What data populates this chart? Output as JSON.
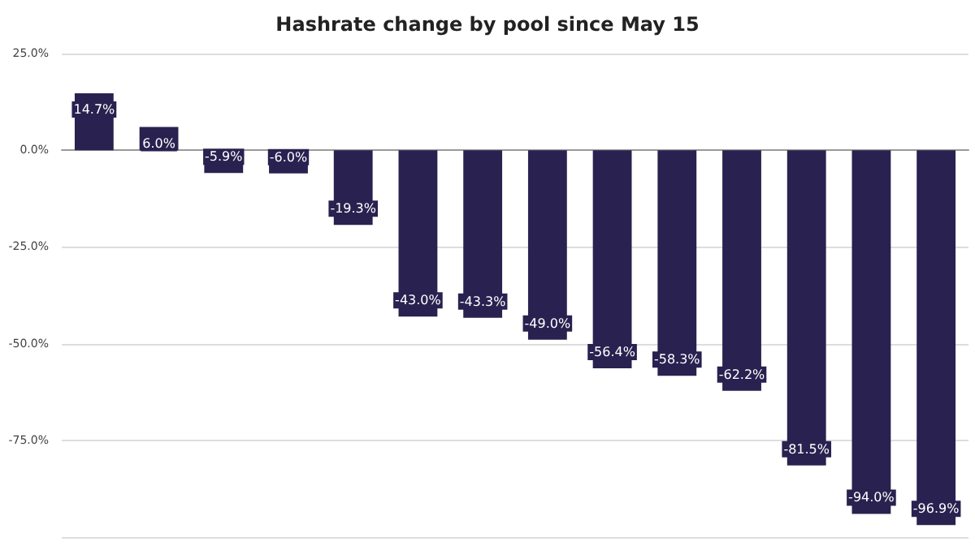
{
  "chart_data": {
    "type": "bar",
    "title": "Hashrate change by pool since May 15",
    "categories": [
      null,
      null,
      null,
      null,
      null,
      null,
      null,
      null,
      null,
      null,
      null,
      null,
      null,
      null
    ],
    "values": [
      14.7,
      6.0,
      -5.9,
      -6.0,
      -19.3,
      -43.0,
      -43.3,
      -49.0,
      -56.4,
      -58.3,
      -62.2,
      -81.5,
      -94.0,
      -96.9
    ],
    "value_labels": [
      "14.7%",
      "6.0%",
      "-5.9%",
      "-6.0%",
      "-19.3%",
      "-43.0%",
      "-43.3%",
      "-49.0%",
      "-56.4%",
      "-58.3%",
      "-62.2%",
      "-81.5%",
      "-94.0%",
      "-96.9%"
    ],
    "color": "#29214f",
    "ylim": [
      -100,
      25
    ],
    "yticks": [
      {
        "value": 25,
        "label": "25.0%"
      },
      {
        "value": 0,
        "label": "0.0%"
      },
      {
        "value": -25,
        "label": "-25.0%"
      },
      {
        "value": -50,
        "label": "-50.0%"
      },
      {
        "value": -75,
        "label": "-75.0%"
      },
      {
        "value": -100,
        "label": null
      }
    ],
    "grid": "y"
  }
}
